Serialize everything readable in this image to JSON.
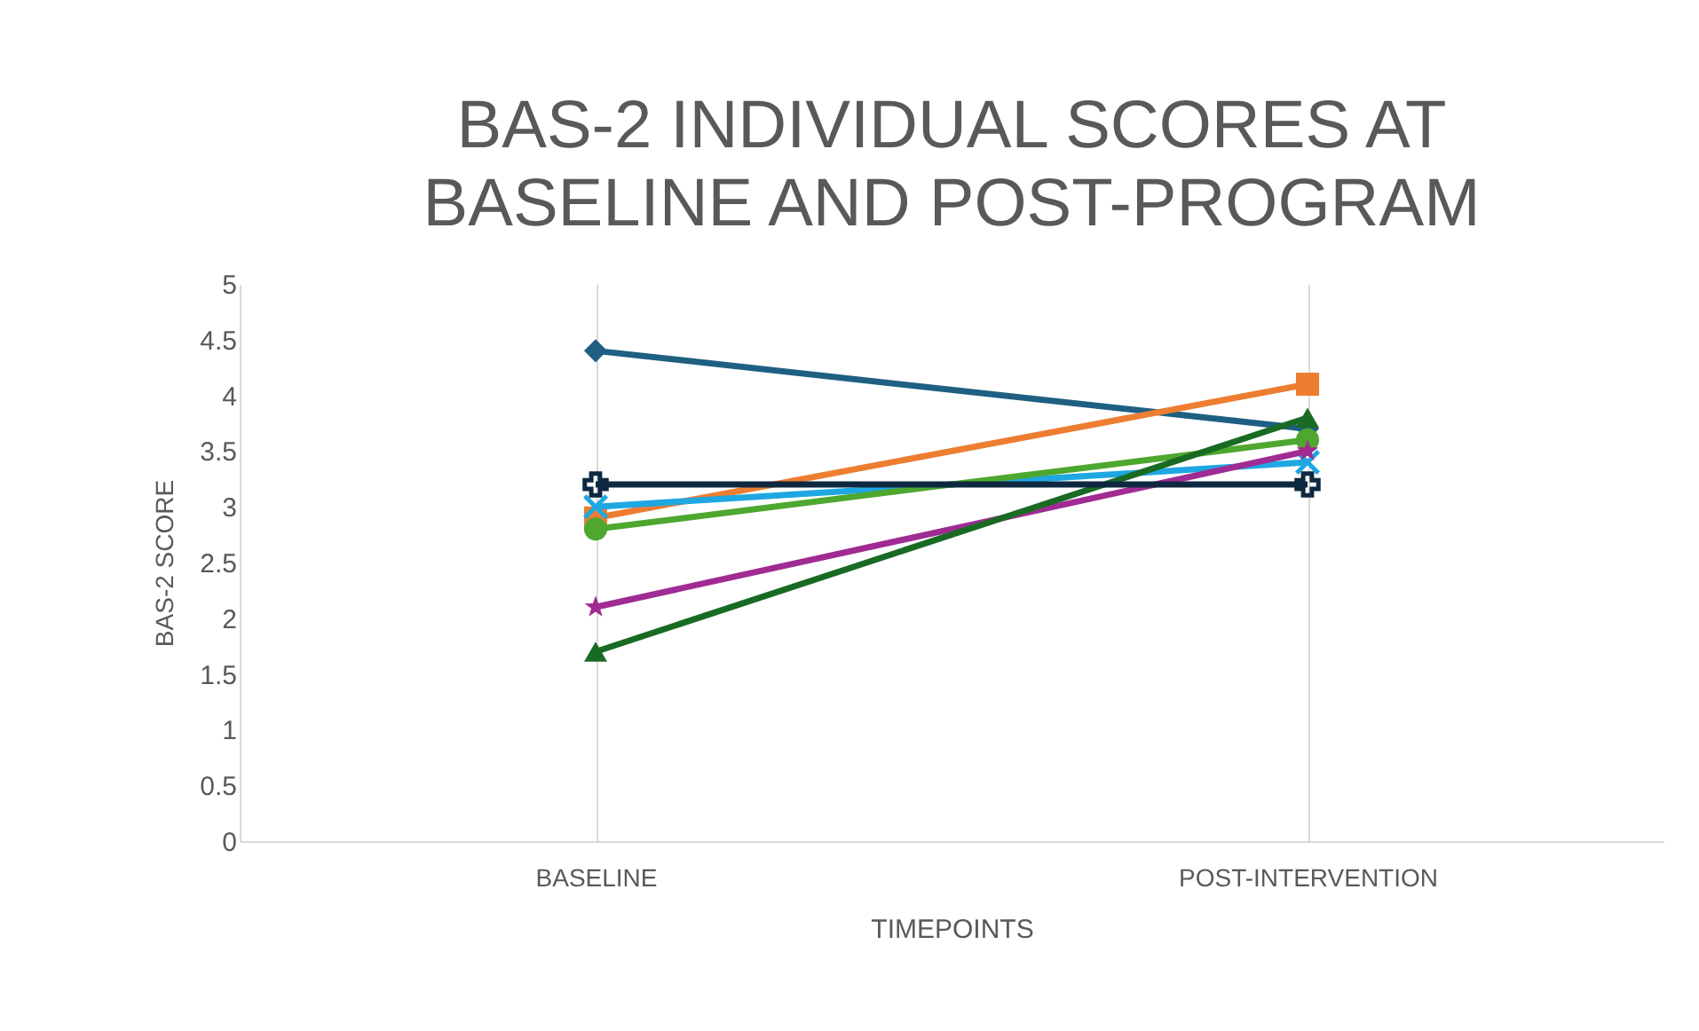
{
  "chart_data": {
    "type": "line",
    "title": "BAS-2 INDIVIDUAL SCORES AT BASELINE AND POST-PROGRAM",
    "xlabel": "TIMEPOINTS",
    "ylabel": "BAS-2 SCORE",
    "categories": [
      "BASELINE",
      "POST-INTERVENTION"
    ],
    "series": [
      {
        "color": "#1f5f82",
        "marker": "diamond",
        "values": [
          4.4,
          3.7
        ]
      },
      {
        "color": "#ed7d31",
        "marker": "square",
        "values": [
          2.9,
          4.1
        ]
      },
      {
        "color": "#1ea7e1",
        "marker": "cross",
        "values": [
          3.0,
          3.4
        ]
      },
      {
        "color": "#4ea72e",
        "marker": "circle",
        "values": [
          2.8,
          3.6
        ]
      },
      {
        "color": "#a02b93",
        "marker": "star",
        "values": [
          2.1,
          3.5
        ]
      },
      {
        "color": "#196b24",
        "marker": "triangle",
        "values": [
          1.7,
          3.8
        ]
      },
      {
        "color": "#0e2841",
        "marker": "plus",
        "values": [
          3.2,
          3.2
        ]
      }
    ],
    "ylim": [
      0,
      5
    ],
    "yticks": [
      0,
      0.5,
      1,
      1.5,
      2,
      2.5,
      3,
      3.5,
      4,
      4.5,
      5
    ],
    "grid": "x"
  }
}
